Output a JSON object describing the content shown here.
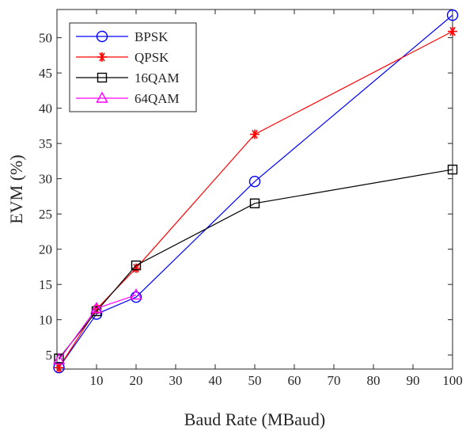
{
  "chart_data": {
    "type": "line",
    "title": "",
    "xlabel": "Baud Rate (MBaud)",
    "ylabel": "EVM (%)",
    "xlim": [
      0,
      100
    ],
    "ylim": [
      3,
      54
    ],
    "xticks": [
      10,
      20,
      30,
      40,
      50,
      60,
      70,
      80,
      90,
      100
    ],
    "yticks": [
      5,
      10,
      15,
      20,
      25,
      30,
      35,
      40,
      45,
      50
    ],
    "grid": false,
    "legend_position": "top-left",
    "series": [
      {
        "name": "BPSK",
        "color": "#0000ff",
        "marker": "circle",
        "x": [
          0.5,
          10,
          20,
          50,
          100
        ],
        "y": [
          3.2,
          10.8,
          13.2,
          29.6,
          53.2
        ]
      },
      {
        "name": "QPSK",
        "color": "#ff0000",
        "marker": "asterisk",
        "x": [
          0.5,
          10,
          20,
          50,
          100
        ],
        "y": [
          3.2,
          11.5,
          17.3,
          36.3,
          50.9
        ]
      },
      {
        "name": "16QAM",
        "color": "#000000",
        "marker": "square",
        "x": [
          0.5,
          10,
          20,
          50,
          100
        ],
        "y": [
          4.5,
          11.2,
          17.7,
          26.5,
          31.3
        ]
      },
      {
        "name": "64QAM",
        "color": "#ff00ff",
        "marker": "triangle",
        "x": [
          0.5,
          10,
          20
        ],
        "y": [
          4.3,
          11.6,
          13.5
        ]
      }
    ]
  }
}
